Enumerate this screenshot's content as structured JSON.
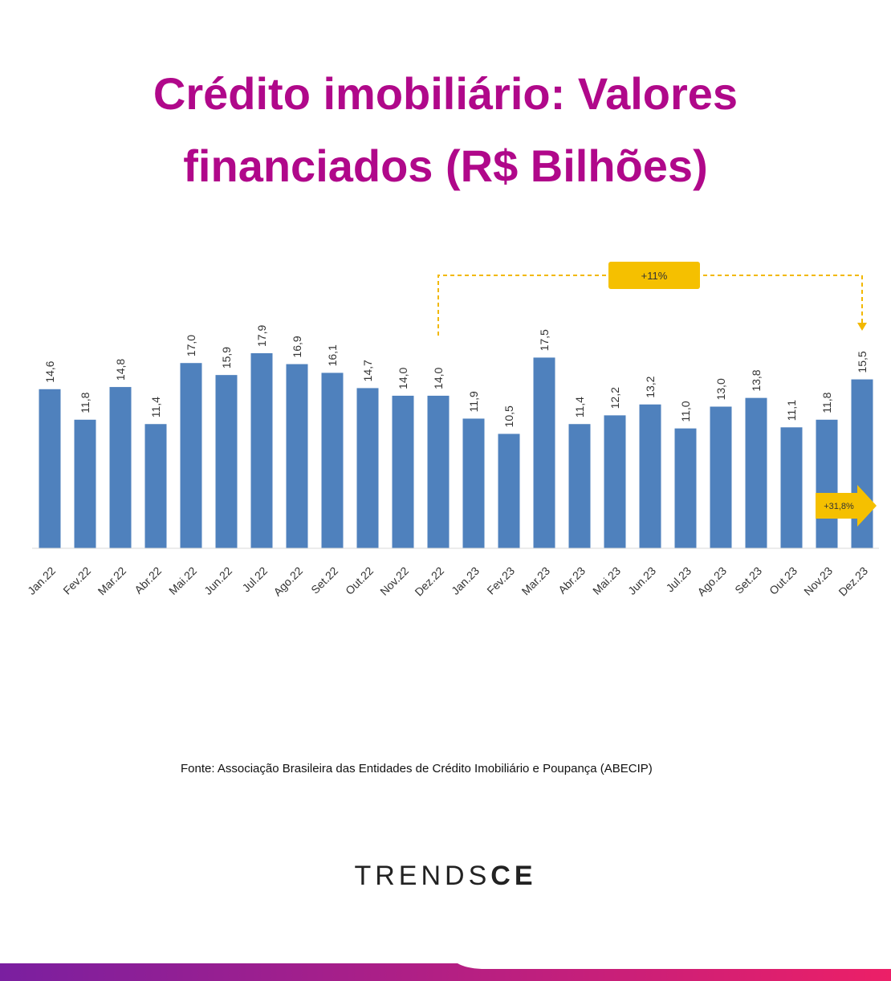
{
  "chart_data": {
    "type": "bar",
    "title": "Crédito imobiliário: Valores financiados (R$ Bilhões)",
    "categories": [
      "Jan.22",
      "Fev.22",
      "Mar.22",
      "Abr.22",
      "Mai.22",
      "Jun.22",
      "Jul.22",
      "Ago.22",
      "Set.22",
      "Out.22",
      "Nov.22",
      "Dez.22",
      "Jan.23",
      "Fev.23",
      "Mar.23",
      "Abr.23",
      "Mai.23",
      "Jun.23",
      "Jul.23",
      "Ago.23",
      "Set.23",
      "Out.23",
      "Nov.23",
      "Dez.23"
    ],
    "values": [
      14.6,
      11.8,
      14.8,
      11.4,
      17.0,
      15.9,
      17.9,
      16.9,
      16.1,
      14.7,
      14.0,
      14.0,
      11.9,
      10.5,
      17.5,
      11.4,
      12.2,
      13.2,
      11.0,
      13.0,
      13.8,
      11.1,
      11.8,
      15.5
    ],
    "value_labels": [
      "14,6",
      "11,8",
      "14,8",
      "11,4",
      "17,0",
      "15,9",
      "17,9",
      "16,9",
      "16,1",
      "14,7",
      "14,0",
      "14,0",
      "11,9",
      "10,5",
      "17,5",
      "11,4",
      "12,2",
      "13,2",
      "11,0",
      "13,0",
      "13,8",
      "11,1",
      "11,8",
      "15,5"
    ],
    "color": "#4f81bd",
    "annotations": [
      "+11%",
      "+31,8%"
    ],
    "source": "Fonte: Associação Brasileira das Entidades de Crédito Imobiliário e Poupança (ABECIP)"
  },
  "brand": {
    "light": "TRENDS",
    "bold": "CE"
  }
}
